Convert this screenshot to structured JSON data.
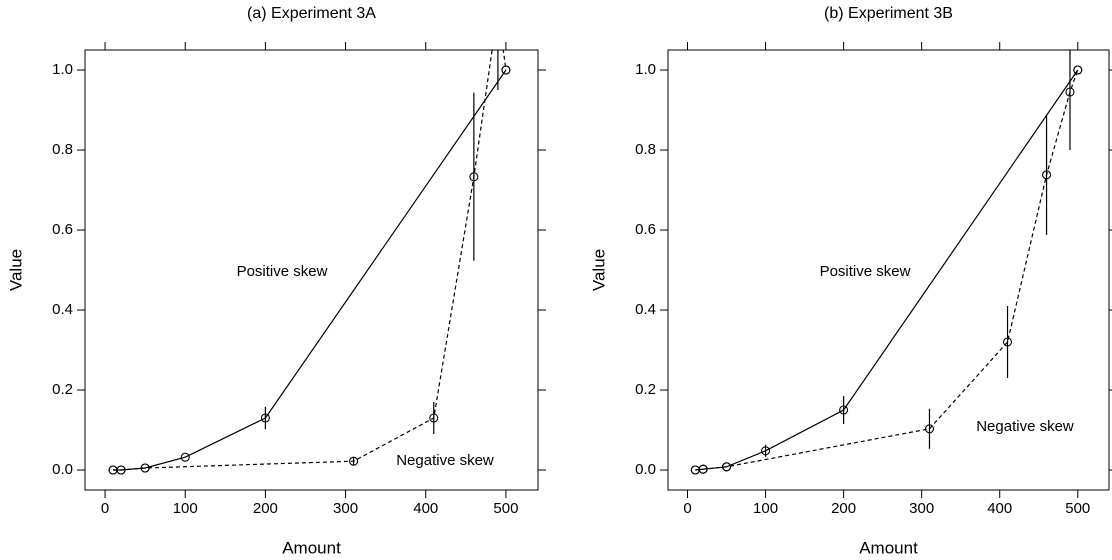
{
  "chart_data": [
    {
      "type": "line",
      "title": "(a) Experiment 3A",
      "x_label": "Amount",
      "y_label": "Value",
      "xlim": [
        -25,
        540
      ],
      "ylim": [
        -0.05,
        1.05
      ],
      "xticks": [
        0,
        100,
        200,
        300,
        400,
        500
      ],
      "yticks": [
        {
          "value": 0,
          "label": "0.0"
        },
        0.2,
        0.4,
        0.6,
        0.8,
        {
          "value": 1,
          "label": "1.0"
        }
      ],
      "series": [
        {
          "name": "Positive skew",
          "color": "#000000",
          "linestyle": "solid",
          "x": [
            10,
            20,
            50,
            100,
            200,
            500
          ],
          "values": [
            0,
            0,
            0.005,
            0.032,
            0.13,
            1.0
          ],
          "errors": [
            null,
            null,
            null,
            null,
            0.028,
            null
          ]
        },
        {
          "name": "Negative skew",
          "color": "#000000",
          "linestyle": "dashed",
          "x": [
            10,
            20,
            50,
            310,
            410,
            460,
            490,
            500
          ],
          "values": [
            0,
            0,
            0.005,
            0.022,
            0.13,
            0.733,
            1.15,
            1.0
          ],
          "errors": [
            null,
            null,
            null,
            0.01,
            0.04,
            0.21,
            0.2,
            null
          ]
        }
      ]
    },
    {
      "type": "line",
      "title": "(b) Experiment 3B",
      "x_label": "Amount",
      "y_label": "Value",
      "xlim": [
        -25,
        540
      ],
      "ylim": [
        -0.05,
        1.05
      ],
      "xticks": [
        0,
        100,
        200,
        300,
        400,
        500
      ],
      "yticks": [
        {
          "value": 0,
          "label": "0.0"
        },
        0.2,
        0.4,
        0.6,
        0.8,
        {
          "value": 1,
          "label": "1.0"
        }
      ],
      "series": [
        {
          "name": "Positive skew",
          "color": "#000000",
          "linestyle": "solid",
          "x": [
            10,
            20,
            50,
            100,
            200,
            500
          ],
          "values": [
            0,
            0.002,
            0.008,
            0.048,
            0.15,
            1.0
          ],
          "errors": [
            null,
            null,
            null,
            0.015,
            0.035,
            null
          ]
        },
        {
          "name": "Negative skew",
          "color": "#000000",
          "linestyle": "dashed",
          "x": [
            10,
            20,
            50,
            310,
            410,
            460,
            490,
            500
          ],
          "values": [
            0,
            0.002,
            0.008,
            0.103,
            0.32,
            0.738,
            0.945,
            1.0
          ],
          "errors": [
            null,
            null,
            null,
            0.05,
            0.09,
            0.15,
            0.145,
            null
          ]
        }
      ]
    }
  ]
}
